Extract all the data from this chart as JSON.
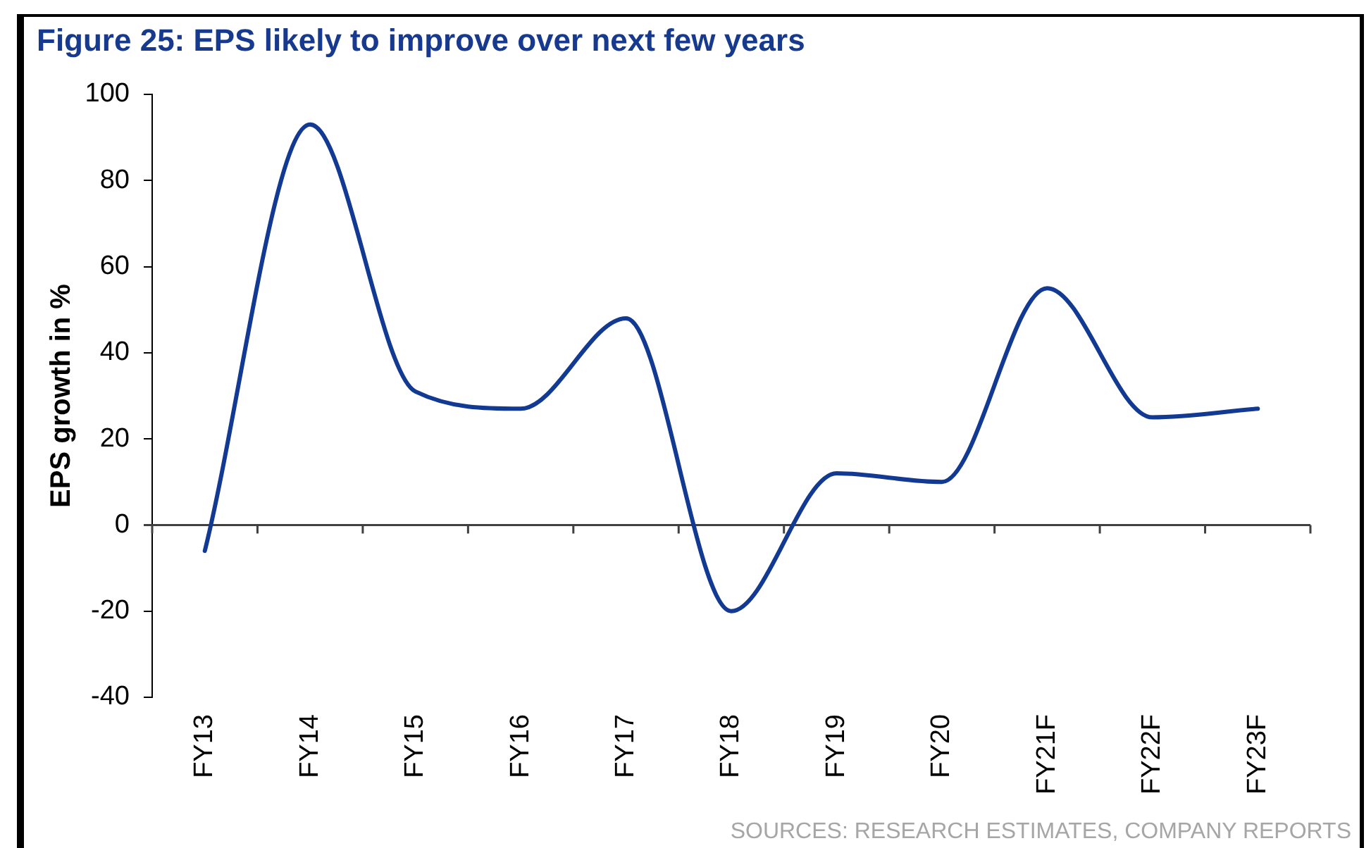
{
  "chart_data": {
    "type": "line",
    "title": "Figure 25: EPS likely to improve over next few years",
    "ylabel": "EPS growth in %",
    "categories": [
      "FY13",
      "FY14",
      "FY15",
      "FY16",
      "FY17",
      "FY18",
      "FY19",
      "FY20",
      "FY21F",
      "FY22F",
      "FY23F"
    ],
    "values": [
      -6,
      93,
      31,
      27,
      48,
      -20,
      12,
      10,
      55,
      25,
      27
    ],
    "color": "#123a92",
    "ylim": [
      -40,
      100
    ],
    "yticks": [
      -40,
      -20,
      0,
      20,
      40,
      60,
      80,
      100
    ],
    "marker": "none",
    "annotations": [
      "SOURCES: RESEARCH ESTIMATES, COMPANY REPORTS"
    ]
  }
}
